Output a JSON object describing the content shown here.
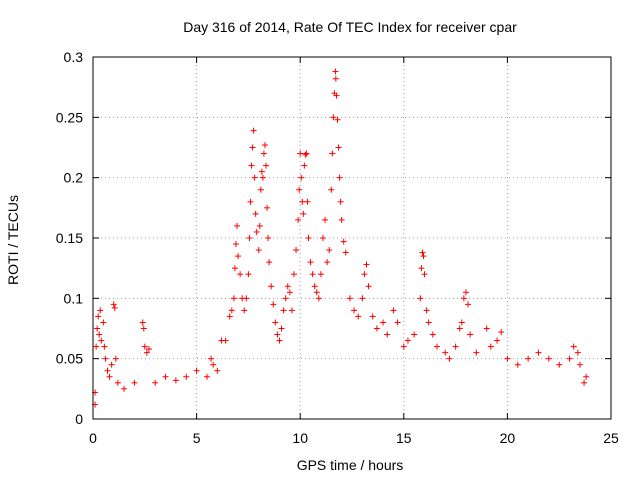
{
  "chart_data": {
    "type": "scatter",
    "title": "Day 316 of 2014, Rate Of TEC Index for receiver cpar",
    "xlabel": "GPS time / hours",
    "ylabel": "ROTI / TECUs",
    "xlim": [
      0,
      25
    ],
    "ylim": [
      0,
      0.3
    ],
    "xticks": [
      0,
      5,
      10,
      15,
      20,
      25
    ],
    "yticks": [
      0,
      0.05,
      0.1,
      0.15,
      0.2,
      0.25,
      0.3
    ],
    "xtick_labels": [
      "0",
      "5",
      "10",
      "15",
      "20",
      "25"
    ],
    "ytick_labels": [
      "0",
      "0.05",
      "0.1",
      "0.15",
      "0.2",
      "0.25",
      "0.3"
    ],
    "grid": true,
    "marker": "+",
    "color": "#ff0000",
    "series": [
      {
        "name": "ROTI",
        "points": [
          [
            0.1,
            0.012
          ],
          [
            0.1,
            0.022
          ],
          [
            0.15,
            0.06
          ],
          [
            0.2,
            0.075
          ],
          [
            0.25,
            0.085
          ],
          [
            0.3,
            0.07
          ],
          [
            0.35,
            0.09
          ],
          [
            0.4,
            0.065
          ],
          [
            0.5,
            0.08
          ],
          [
            0.55,
            0.06
          ],
          [
            0.6,
            0.05
          ],
          [
            0.7,
            0.04
          ],
          [
            0.8,
            0.035
          ],
          [
            0.9,
            0.045
          ],
          [
            1.0,
            0.095
          ],
          [
            1.05,
            0.092
          ],
          [
            1.1,
            0.05
          ],
          [
            1.2,
            0.03
          ],
          [
            1.5,
            0.025
          ],
          [
            2.0,
            0.03
          ],
          [
            2.4,
            0.08
          ],
          [
            2.45,
            0.075
          ],
          [
            2.5,
            0.06
          ],
          [
            2.6,
            0.055
          ],
          [
            2.7,
            0.058
          ],
          [
            3.0,
            0.03
          ],
          [
            3.5,
            0.035
          ],
          [
            4.0,
            0.032
          ],
          [
            4.5,
            0.035
          ],
          [
            5.0,
            0.04
          ],
          [
            5.5,
            0.035
          ],
          [
            5.7,
            0.05
          ],
          [
            5.8,
            0.045
          ],
          [
            6.0,
            0.04
          ],
          [
            6.2,
            0.065
          ],
          [
            6.4,
            0.065
          ],
          [
            6.6,
            0.085
          ],
          [
            6.7,
            0.09
          ],
          [
            6.8,
            0.1
          ],
          [
            6.85,
            0.125
          ],
          [
            6.9,
            0.145
          ],
          [
            6.95,
            0.16
          ],
          [
            7.0,
            0.135
          ],
          [
            7.1,
            0.12
          ],
          [
            7.2,
            0.1
          ],
          [
            7.3,
            0.09
          ],
          [
            7.4,
            0.1
          ],
          [
            7.5,
            0.12
          ],
          [
            7.55,
            0.15
          ],
          [
            7.6,
            0.18
          ],
          [
            7.65,
            0.21
          ],
          [
            7.7,
            0.225
          ],
          [
            7.75,
            0.239
          ],
          [
            7.8,
            0.2
          ],
          [
            7.85,
            0.17
          ],
          [
            7.9,
            0.155
          ],
          [
            8.0,
            0.14
          ],
          [
            8.05,
            0.16
          ],
          [
            8.1,
            0.19
          ],
          [
            8.15,
            0.205
          ],
          [
            8.2,
            0.2
          ],
          [
            8.25,
            0.22
          ],
          [
            8.3,
            0.227
          ],
          [
            8.35,
            0.21
          ],
          [
            8.4,
            0.175
          ],
          [
            8.45,
            0.15
          ],
          [
            8.5,
            0.13
          ],
          [
            8.6,
            0.11
          ],
          [
            8.7,
            0.095
          ],
          [
            8.8,
            0.08
          ],
          [
            8.9,
            0.07
          ],
          [
            9.0,
            0.065
          ],
          [
            9.1,
            0.075
          ],
          [
            9.2,
            0.09
          ],
          [
            9.3,
            0.1
          ],
          [
            9.4,
            0.11
          ],
          [
            9.5,
            0.105
          ],
          [
            9.6,
            0.09
          ],
          [
            9.7,
            0.12
          ],
          [
            9.8,
            0.14
          ],
          [
            9.9,
            0.165
          ],
          [
            9.95,
            0.19
          ],
          [
            10.0,
            0.22
          ],
          [
            10.05,
            0.2
          ],
          [
            10.1,
            0.18
          ],
          [
            10.15,
            0.17
          ],
          [
            10.2,
            0.21
          ],
          [
            10.25,
            0.219
          ],
          [
            10.3,
            0.22
          ],
          [
            10.35,
            0.18
          ],
          [
            10.4,
            0.15
          ],
          [
            10.5,
            0.13
          ],
          [
            10.6,
            0.12
          ],
          [
            10.7,
            0.11
          ],
          [
            10.8,
            0.105
          ],
          [
            10.9,
            0.1
          ],
          [
            11.0,
            0.12
          ],
          [
            11.1,
            0.15
          ],
          [
            11.2,
            0.165
          ],
          [
            11.3,
            0.13
          ],
          [
            11.4,
            0.14
          ],
          [
            11.5,
            0.19
          ],
          [
            11.55,
            0.22
          ],
          [
            11.6,
            0.25
          ],
          [
            11.65,
            0.27
          ],
          [
            11.7,
            0.288
          ],
          [
            11.72,
            0.282
          ],
          [
            11.75,
            0.268
          ],
          [
            11.8,
            0.248
          ],
          [
            11.85,
            0.225
          ],
          [
            11.9,
            0.2
          ],
          [
            11.95,
            0.18
          ],
          [
            12.0,
            0.165
          ],
          [
            12.1,
            0.147
          ],
          [
            12.2,
            0.138
          ],
          [
            12.4,
            0.1
          ],
          [
            12.6,
            0.09
          ],
          [
            12.8,
            0.085
          ],
          [
            13.0,
            0.1
          ],
          [
            13.1,
            0.12
          ],
          [
            13.2,
            0.128
          ],
          [
            13.3,
            0.11
          ],
          [
            13.5,
            0.085
          ],
          [
            13.7,
            0.075
          ],
          [
            14.0,
            0.08
          ],
          [
            14.2,
            0.07
          ],
          [
            14.5,
            0.09
          ],
          [
            14.7,
            0.08
          ],
          [
            15.0,
            0.06
          ],
          [
            15.2,
            0.065
          ],
          [
            15.5,
            0.07
          ],
          [
            15.8,
            0.1
          ],
          [
            15.85,
            0.125
          ],
          [
            15.9,
            0.138
          ],
          [
            15.95,
            0.135
          ],
          [
            16.0,
            0.12
          ],
          [
            16.1,
            0.09
          ],
          [
            16.2,
            0.08
          ],
          [
            16.4,
            0.07
          ],
          [
            16.6,
            0.06
          ],
          [
            17.0,
            0.055
          ],
          [
            17.2,
            0.05
          ],
          [
            17.5,
            0.06
          ],
          [
            17.7,
            0.075
          ],
          [
            17.8,
            0.08
          ],
          [
            17.9,
            0.1
          ],
          [
            18.0,
            0.105
          ],
          [
            18.1,
            0.095
          ],
          [
            18.2,
            0.07
          ],
          [
            18.5,
            0.055
          ],
          [
            19.0,
            0.075
          ],
          [
            19.2,
            0.06
          ],
          [
            19.5,
            0.065
          ],
          [
            19.7,
            0.072
          ],
          [
            20.0,
            0.05
          ],
          [
            20.5,
            0.045
          ],
          [
            21.0,
            0.05
          ],
          [
            21.5,
            0.055
          ],
          [
            22.0,
            0.05
          ],
          [
            22.5,
            0.045
          ],
          [
            23.0,
            0.05
          ],
          [
            23.2,
            0.06
          ],
          [
            23.4,
            0.055
          ],
          [
            23.5,
            0.045
          ],
          [
            23.7,
            0.03
          ],
          [
            23.8,
            0.035
          ]
        ]
      }
    ]
  }
}
